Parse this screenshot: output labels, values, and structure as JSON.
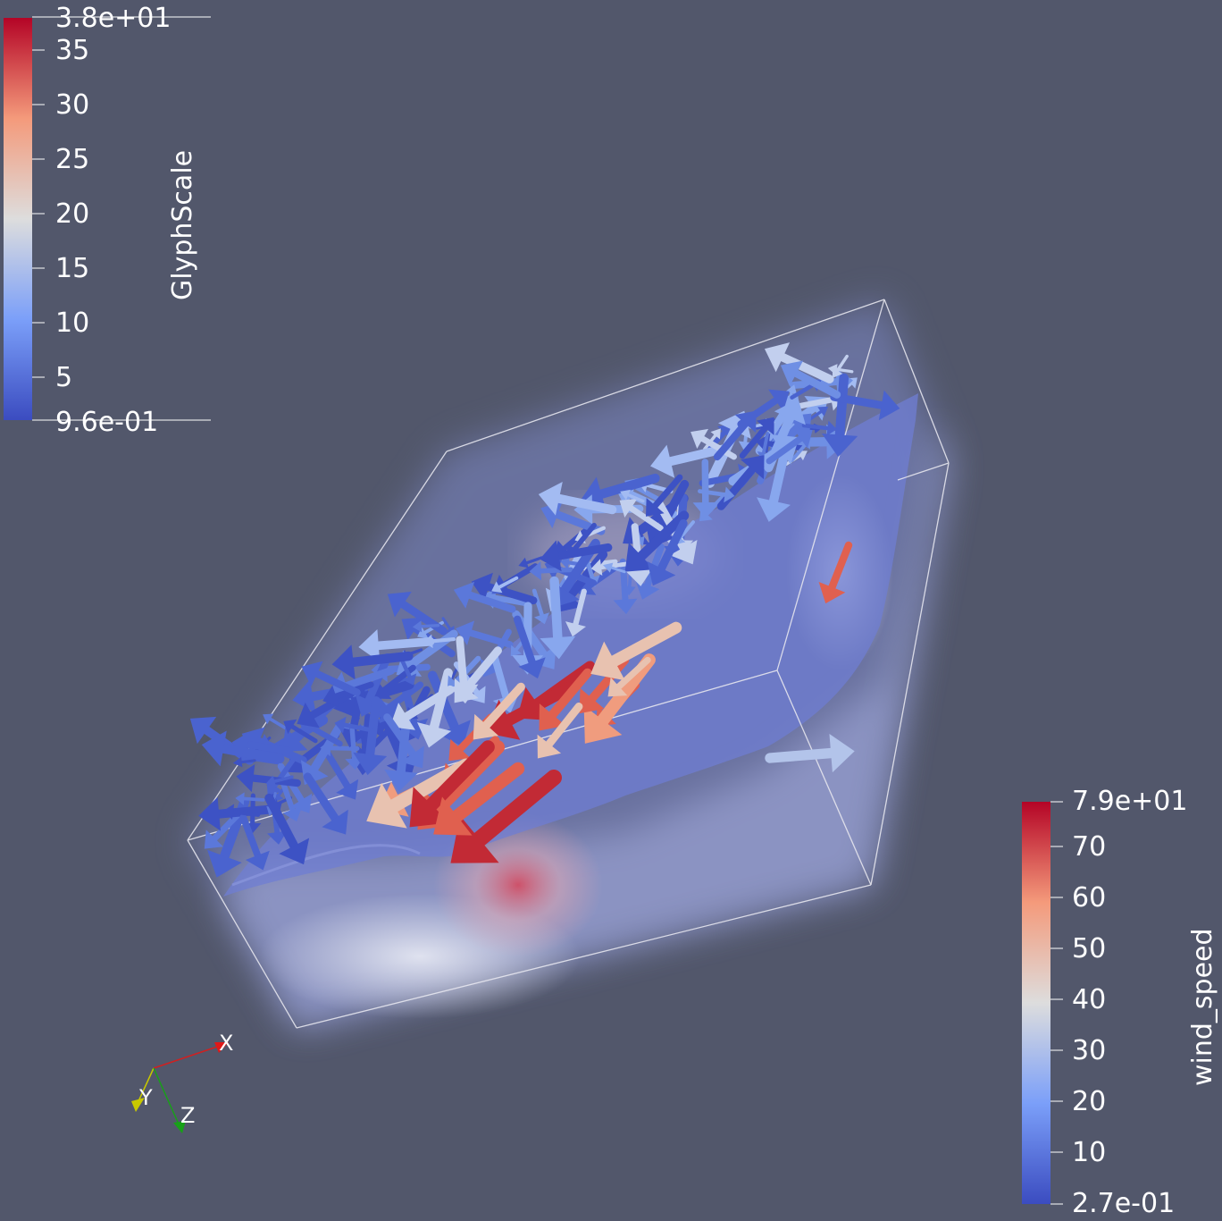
{
  "legend_glyph": {
    "title": "GlyphScale",
    "max_label": "3.8e+01",
    "min_label": "9.6e-01",
    "ticks": [
      "35",
      "30",
      "25",
      "20",
      "15",
      "10",
      "5"
    ]
  },
  "legend_wind": {
    "title": "wind_speed",
    "max_label": "7.9e+01",
    "min_label": "2.7e-01",
    "ticks": [
      "70",
      "60",
      "50",
      "40",
      "30",
      "20",
      "10"
    ]
  },
  "axes": {
    "x": "X",
    "y": "Y",
    "z": "Z"
  },
  "colors": {
    "background": "#52576b",
    "colormap_low": "#3b4cc0",
    "colormap_mid": "#dddddd",
    "colormap_high": "#b40426"
  }
}
